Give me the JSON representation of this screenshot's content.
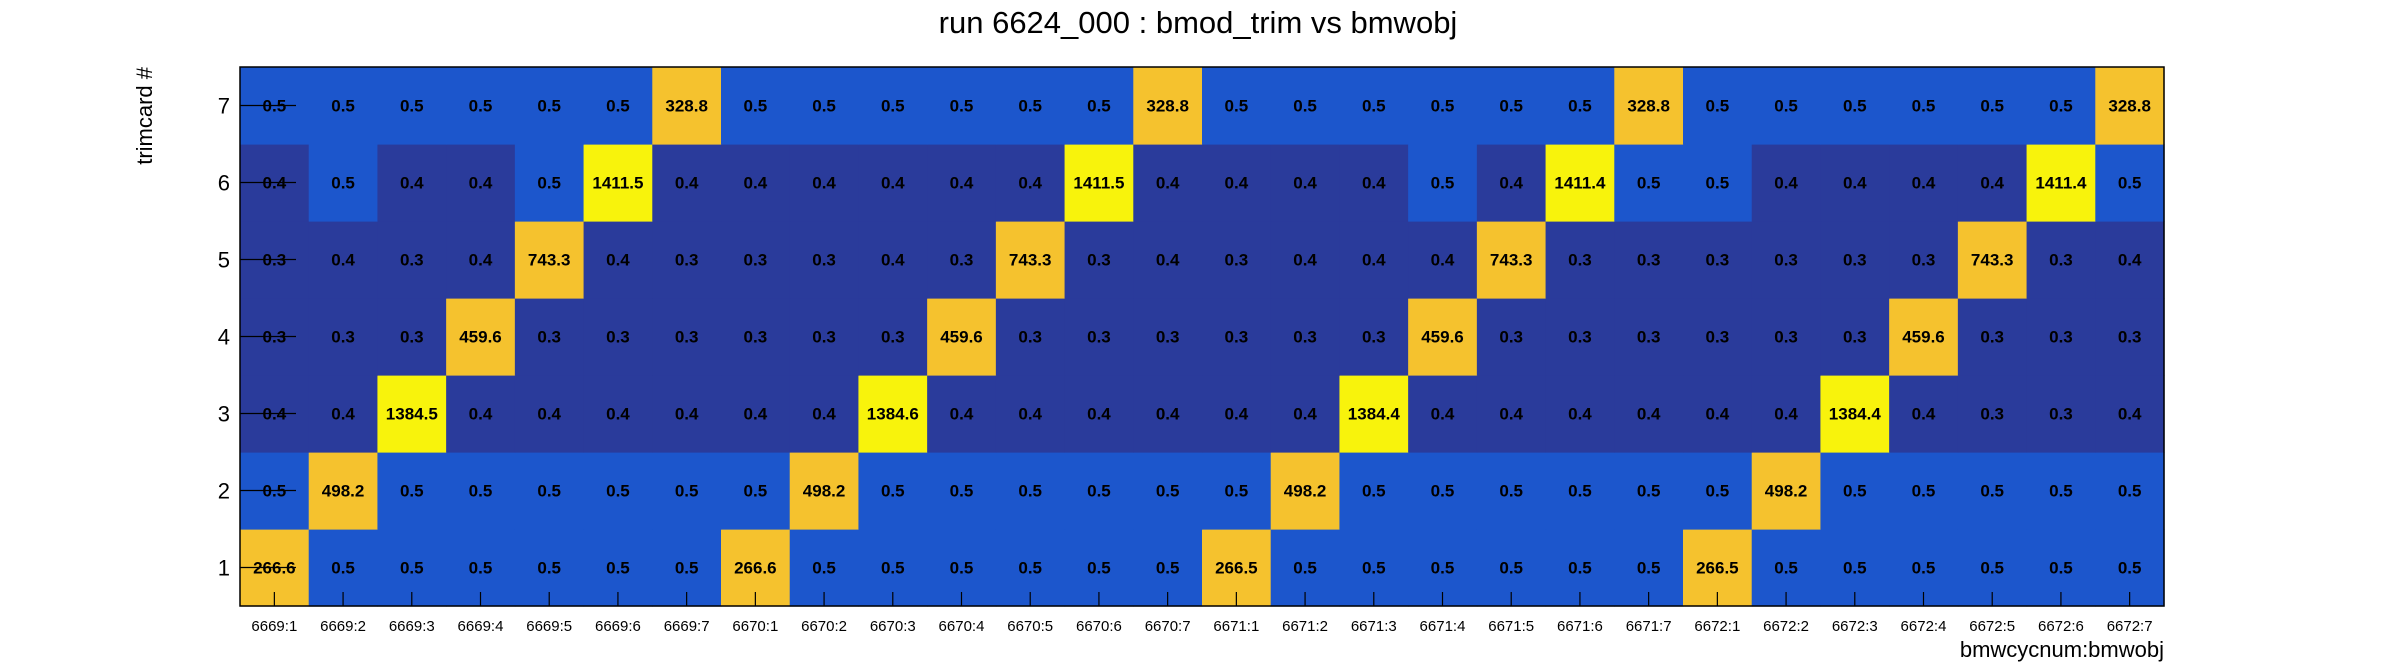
{
  "chart_data": {
    "type": "heatmap",
    "title": "run 6624_000 : bmod_trim vs bmwobj",
    "xlabel": "bmwcycnum:bmwobj",
    "ylabel": "trimcard #",
    "x_categories": [
      "6669:1",
      "6669:2",
      "6669:3",
      "6669:4",
      "6669:5",
      "6669:6",
      "6669:7",
      "6670:1",
      "6670:2",
      "6670:3",
      "6670:4",
      "6670:5",
      "6670:6",
      "6670:7",
      "6671:1",
      "6671:2",
      "6671:3",
      "6671:4",
      "6671:5",
      "6671:6",
      "6671:7",
      "6672:1",
      "6672:2",
      "6672:3",
      "6672:4",
      "6672:5",
      "6672:6",
      "6672:7"
    ],
    "y_categories": [
      "1",
      "2",
      "3",
      "4",
      "5",
      "6",
      "7"
    ],
    "value_labels": [
      [
        "266.6",
        "0.5",
        "0.5",
        "0.5",
        "0.5",
        "0.5",
        "0.5",
        "266.6",
        "0.5",
        "0.5",
        "0.5",
        "0.5",
        "0.5",
        "0.5",
        "266.5",
        "0.5",
        "0.5",
        "0.5",
        "0.5",
        "0.5",
        "0.5",
        "266.5",
        "0.5",
        "0.5",
        "0.5",
        "0.5",
        "0.5",
        "0.5"
      ],
      [
        "0.5",
        "498.2",
        "0.5",
        "0.5",
        "0.5",
        "0.5",
        "0.5",
        "0.5",
        "498.2",
        "0.5",
        "0.5",
        "0.5",
        "0.5",
        "0.5",
        "0.5",
        "498.2",
        "0.5",
        "0.5",
        "0.5",
        "0.5",
        "0.5",
        "0.5",
        "498.2",
        "0.5",
        "0.5",
        "0.5",
        "0.5",
        "0.5"
      ],
      [
        "0.4",
        "0.4",
        "1384.5",
        "0.4",
        "0.4",
        "0.4",
        "0.4",
        "0.4",
        "0.4",
        "1384.6",
        "0.4",
        "0.4",
        "0.4",
        "0.4",
        "0.4",
        "0.4",
        "1384.4",
        "0.4",
        "0.4",
        "0.4",
        "0.4",
        "0.4",
        "0.4",
        "1384.4",
        "0.4",
        "0.3",
        "0.3",
        "0.4"
      ],
      [
        "0.3",
        "0.3",
        "0.3",
        "459.6",
        "0.3",
        "0.3",
        "0.3",
        "0.3",
        "0.3",
        "0.3",
        "459.6",
        "0.3",
        "0.3",
        "0.3",
        "0.3",
        "0.3",
        "0.3",
        "459.6",
        "0.3",
        "0.3",
        "0.3",
        "0.3",
        "0.3",
        "0.3",
        "459.6",
        "0.3",
        "0.3",
        "0.3"
      ],
      [
        "0.3",
        "0.4",
        "0.3",
        "0.4",
        "743.3",
        "0.4",
        "0.3",
        "0.3",
        "0.3",
        "0.4",
        "0.3",
        "743.3",
        "0.3",
        "0.4",
        "0.3",
        "0.4",
        "0.4",
        "0.4",
        "743.3",
        "0.3",
        "0.3",
        "0.3",
        "0.3",
        "0.3",
        "0.3",
        "743.3",
        "0.3",
        "0.4"
      ],
      [
        "0.4",
        "0.5",
        "0.4",
        "0.4",
        "0.5",
        "1411.5",
        "0.4",
        "0.4",
        "0.4",
        "0.4",
        "0.4",
        "0.4",
        "1411.5",
        "0.4",
        "0.4",
        "0.4",
        "0.4",
        "0.5",
        "0.4",
        "1411.4",
        "0.5",
        "0.5",
        "0.4",
        "0.4",
        "0.4",
        "0.4",
        "1411.4",
        "0.5"
      ],
      [
        "0.5",
        "0.5",
        "0.5",
        "0.5",
        "0.5",
        "0.5",
        "328.8",
        "0.5",
        "0.5",
        "0.5",
        "0.5",
        "0.5",
        "0.5",
        "328.8",
        "0.5",
        "0.5",
        "0.5",
        "0.5",
        "0.5",
        "0.5",
        "328.8",
        "0.5",
        "0.5",
        "0.5",
        "0.5",
        "0.5",
        "0.5",
        "328.8"
      ]
    ],
    "color_scale": {
      "low": "#2a3b9b",
      "mid": "#1c56cc",
      "high_a": "#f5c22e",
      "high_b": "#f8f30c"
    },
    "grid": false,
    "legend": "none"
  }
}
